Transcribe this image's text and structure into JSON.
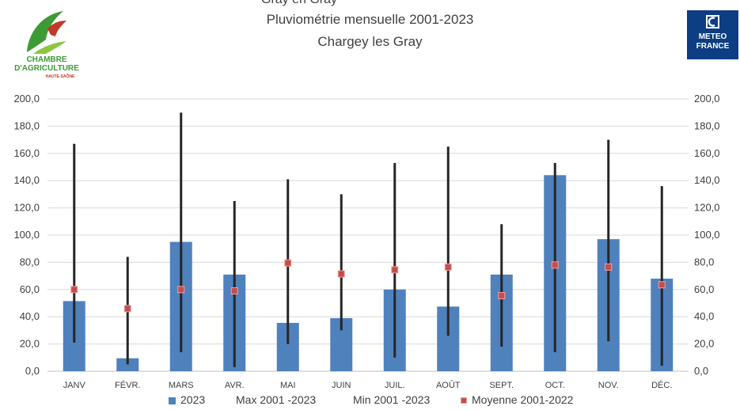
{
  "header": {
    "top_cut_text": "Gray en Gray",
    "title_line1": "Pluviométrie mensuelle 2001-2023",
    "title_line2": "Chargey les Gray"
  },
  "logos": {
    "left": {
      "line1": "CHAMBRE",
      "line2": "D'AGRICULTURE",
      "line3": "HAUTE-SAÔNE",
      "color": "#3d9b35",
      "accent": "#c0392b"
    },
    "right": {
      "line1": "METEO",
      "line2": "FRANCE",
      "color": "#0d3d82"
    }
  },
  "chart_data": {
    "type": "bar",
    "title": "Pluviométrie mensuelle 2001-2023",
    "subtitle": "Chargey les Gray",
    "categories": [
      "JANV",
      "FÉVR.",
      "MARS",
      "AVR.",
      "MAI",
      "JUIN",
      "JUIL.",
      "AOÛT",
      "SEPT.",
      "OCT.",
      "NOV.",
      "DÉC."
    ],
    "ylim": [
      0,
      200
    ],
    "yticks": [
      "0,0",
      "20,0",
      "40,0",
      "60,0",
      "80,0",
      "100,0",
      "120,0",
      "140,0",
      "160,0",
      "180,0",
      "200,0"
    ],
    "grid": true,
    "legend_position": "bottom",
    "series": [
      {
        "name": "2023",
        "kind": "bar",
        "color": "#4f81bd",
        "values": [
          51.5,
          9.5,
          95,
          71,
          35.5,
          39,
          60,
          47.5,
          71,
          144,
          97,
          68
        ]
      },
      {
        "name": "Max 2001 -2023",
        "kind": "range_high",
        "values": [
          167,
          84,
          190,
          125,
          141,
          130,
          153,
          165,
          108,
          153,
          170,
          136
        ]
      },
      {
        "name": "Min 2001 -2023",
        "kind": "range_low",
        "values": [
          21,
          5,
          14,
          3,
          20,
          30,
          10,
          26,
          18,
          14,
          22,
          4
        ]
      },
      {
        "name": "Moyenne 2001-2022",
        "kind": "marker",
        "color": "#c0504d",
        "values": [
          60,
          46,
          60,
          59,
          79.5,
          71.5,
          74.5,
          76.5,
          55.5,
          78,
          76.5,
          63.5
        ]
      }
    ]
  }
}
